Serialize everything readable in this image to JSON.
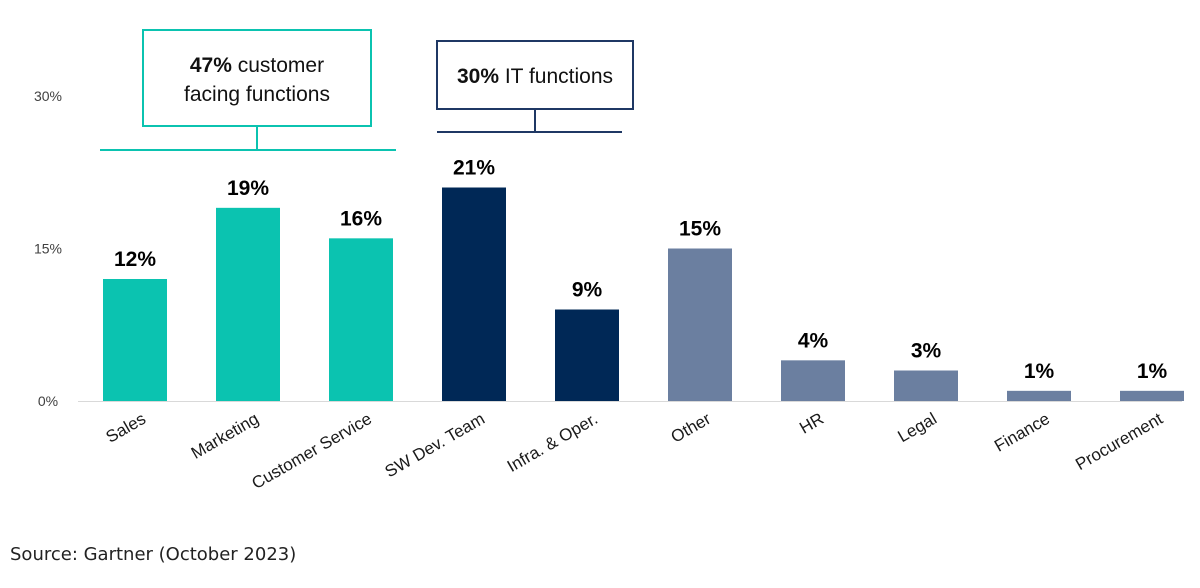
{
  "chart_data": {
    "type": "bar",
    "categories": [
      "Sales",
      "Marketing",
      "Customer Service",
      "SW Dev. Team",
      "Infra. & Oper.",
      "Other",
      "HR",
      "Legal",
      "Finance",
      "Procurement"
    ],
    "values": [
      12,
      19,
      16,
      21,
      9,
      15,
      4,
      3,
      1,
      1
    ],
    "value_labels": [
      "12%",
      "19%",
      "16%",
      "21%",
      "9%",
      "15%",
      "4%",
      "3%",
      "1%",
      "1%"
    ],
    "bar_colors": [
      "#0bc3b0",
      "#0bc3b0",
      "#0bc3b0",
      "#002856",
      "#002856",
      "#6b7fa0",
      "#6b7fa0",
      "#6b7fa0",
      "#6b7fa0",
      "#6b7fa0"
    ],
    "yticks": [
      "0%",
      "15%",
      "30%"
    ],
    "ytick_values": [
      0,
      15,
      30
    ],
    "ylim": [
      0,
      30
    ],
    "grid": false,
    "groups": [
      {
        "bold": "47%",
        "line1_rest": " customer",
        "line2": "facing functions",
        "color": "#0bc3b0",
        "first": 0,
        "last": 2
      },
      {
        "bold": "30%",
        "line1_rest": " IT functions",
        "line2": "",
        "color": "#1f3864",
        "first": 3,
        "last": 4
      }
    ]
  },
  "source": "Source: Gartner (October 2023)"
}
